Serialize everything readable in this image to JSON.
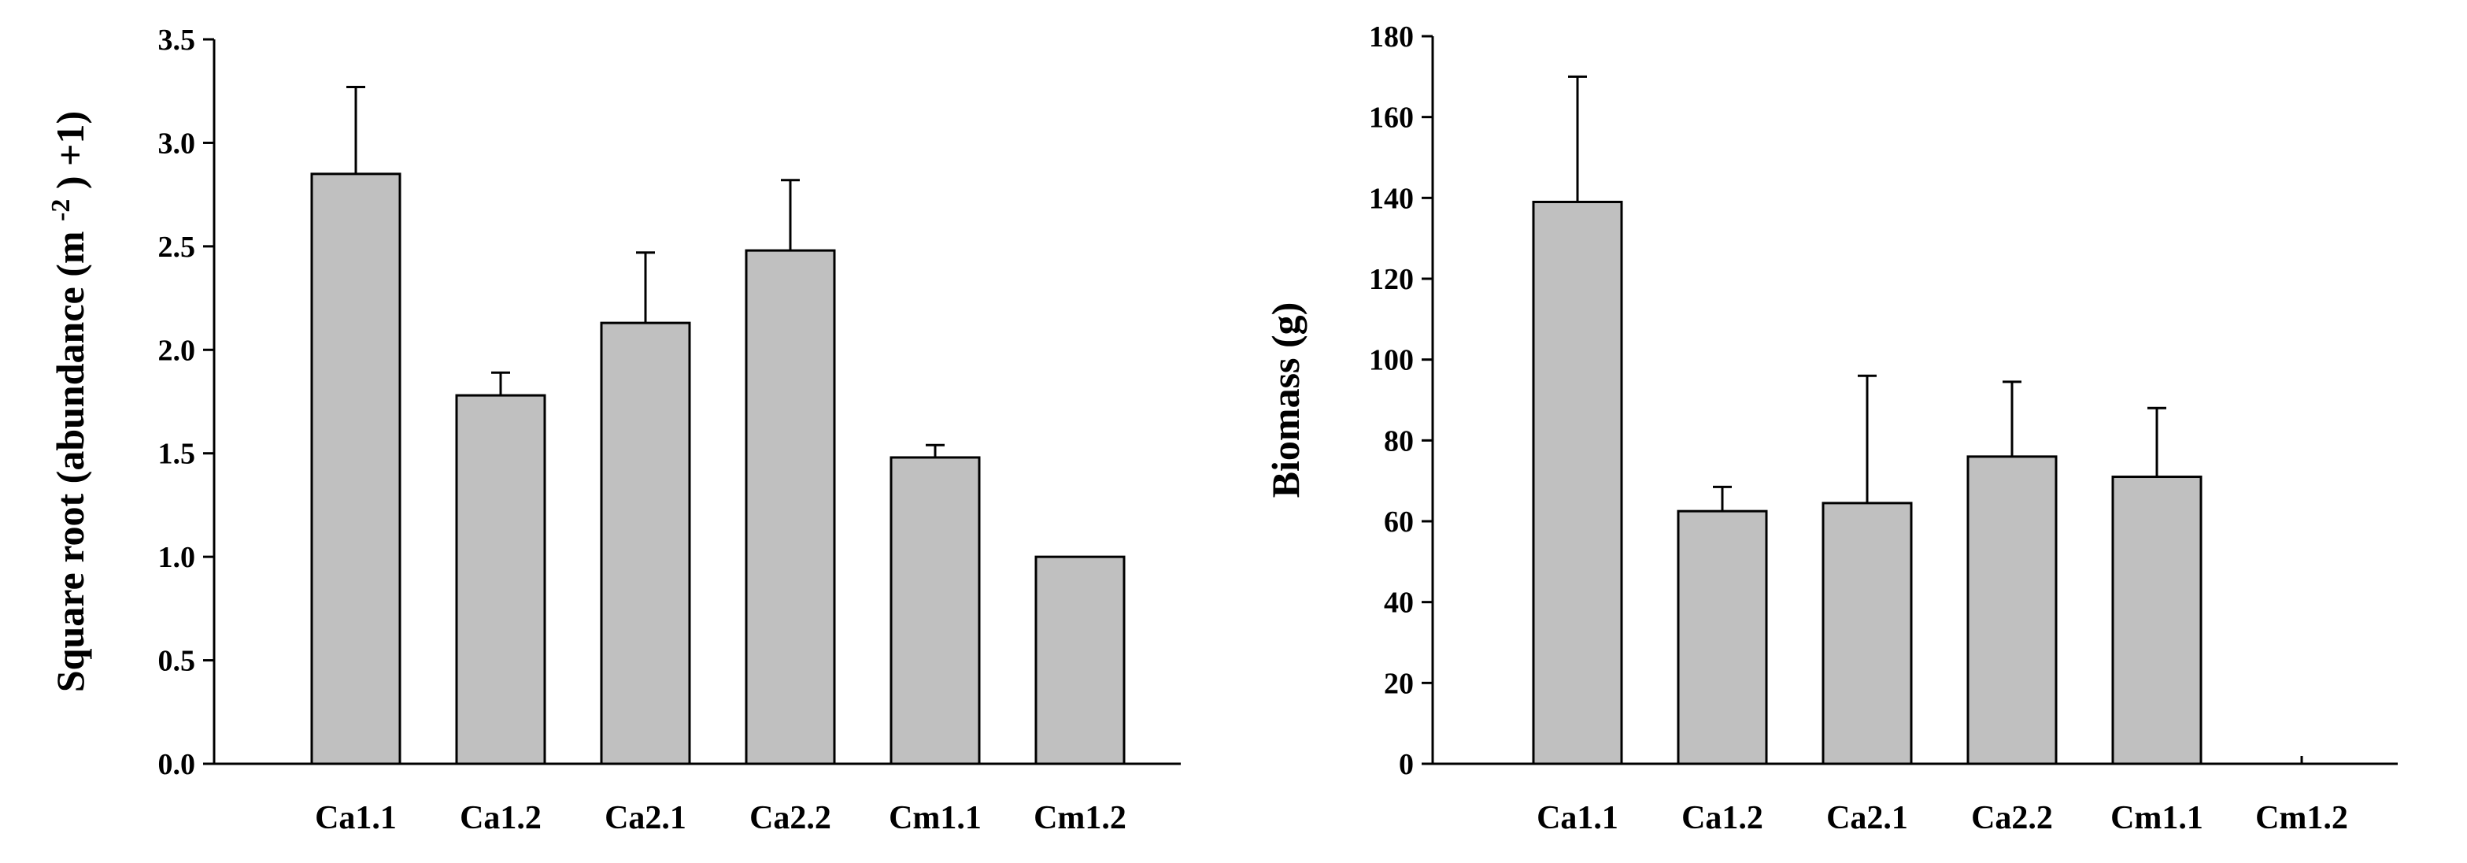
{
  "chart_data": [
    {
      "type": "bar",
      "categories": [
        "Ca1.1",
        "Ca1.2",
        "Ca2.1",
        "Ca2.2",
        "Cm1.1",
        "Cm1.2"
      ],
      "values": [
        2.85,
        1.78,
        2.13,
        2.48,
        1.48,
        1.0
      ],
      "errors": [
        0.42,
        0.11,
        0.34,
        0.34,
        0.06,
        0.0
      ],
      "ylabel_main": "Square root (abundance (m",
      "ylabel_sup": "-2",
      "ylabel_tail": ") +1)",
      "xlabel": "",
      "ylim": [
        0,
        3.5
      ],
      "yticks": [
        "0.0",
        "0.5",
        "1.0",
        "1.5",
        "2.0",
        "2.5",
        "3.0",
        "3.5"
      ],
      "bar_color": "#c0c0c0"
    },
    {
      "type": "bar",
      "categories": [
        "Ca1.1",
        "Ca1.2",
        "Ca2.1",
        "Ca2.2",
        "Cm1.1",
        "Cm1.2"
      ],
      "values": [
        139,
        62.5,
        64.5,
        76,
        71,
        0
      ],
      "errors": [
        31,
        6,
        31.5,
        18.5,
        17,
        0
      ],
      "ylabel": "Biomass (g)",
      "xlabel": "",
      "ylim": [
        0,
        180
      ],
      "yticks": [
        "0",
        "20",
        "40",
        "60",
        "80",
        "100",
        "120",
        "140",
        "160",
        "180"
      ],
      "bar_color": "#c0c0c0"
    }
  ]
}
